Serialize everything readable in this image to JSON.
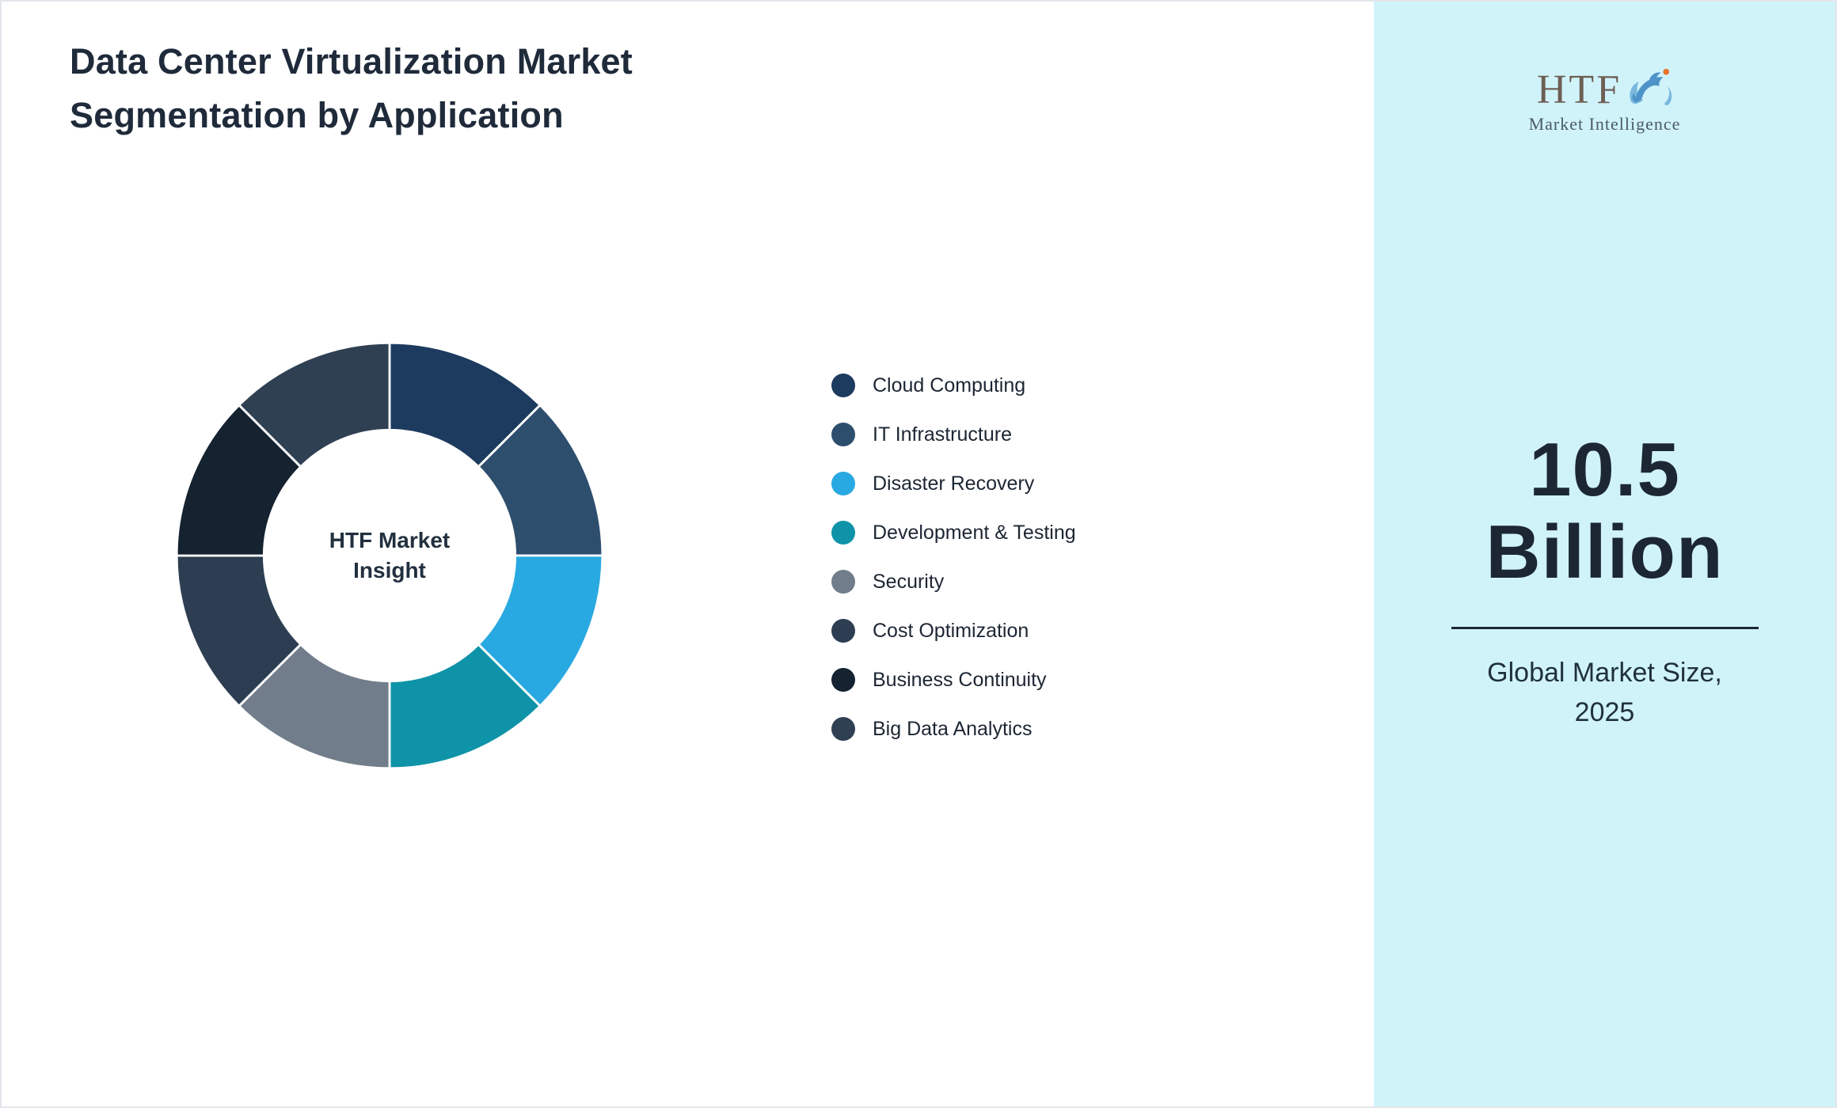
{
  "title": "Data Center Virtualization Market Segmentation by Application",
  "chart_data": {
    "type": "pie",
    "subtype": "donut",
    "title": "Data Center Virtualization Market Segmentation by Application",
    "center_label": "HTF Market Insight",
    "legend_position": "right",
    "segments": [
      {
        "label": "Cloud Computing",
        "value": 12.5,
        "color": "#1d3b5f"
      },
      {
        "label": "IT Infrastructure",
        "value": 12.5,
        "color": "#2e4e6e"
      },
      {
        "label": "Disaster Recovery",
        "value": 12.5,
        "color": "#29a9e1"
      },
      {
        "label": "Development & Testing",
        "value": 12.5,
        "color": "#0f93a8"
      },
      {
        "label": "Security",
        "value": 12.5,
        "color": "#717d8a"
      },
      {
        "label": "Cost Optimization",
        "value": 12.5,
        "color": "#2d3e52"
      },
      {
        "label": "Business Continuity",
        "value": 12.5,
        "color": "#152230"
      },
      {
        "label": "Big Data Analytics",
        "value": 12.5,
        "color": "#2f4053"
      }
    ]
  },
  "sidebar": {
    "background": "#d0f3fa",
    "logo": {
      "text": "HTF",
      "subtext": "Market Intelligence",
      "icon": "dolphin-splash-icon",
      "icon_colors": {
        "dolphin": "#4e93c8",
        "splash": "#7ab8dd",
        "ball": "#e8732a"
      }
    },
    "market_size_value": "10.5 Billion",
    "market_size_caption": "Global Market Size, 2025"
  }
}
